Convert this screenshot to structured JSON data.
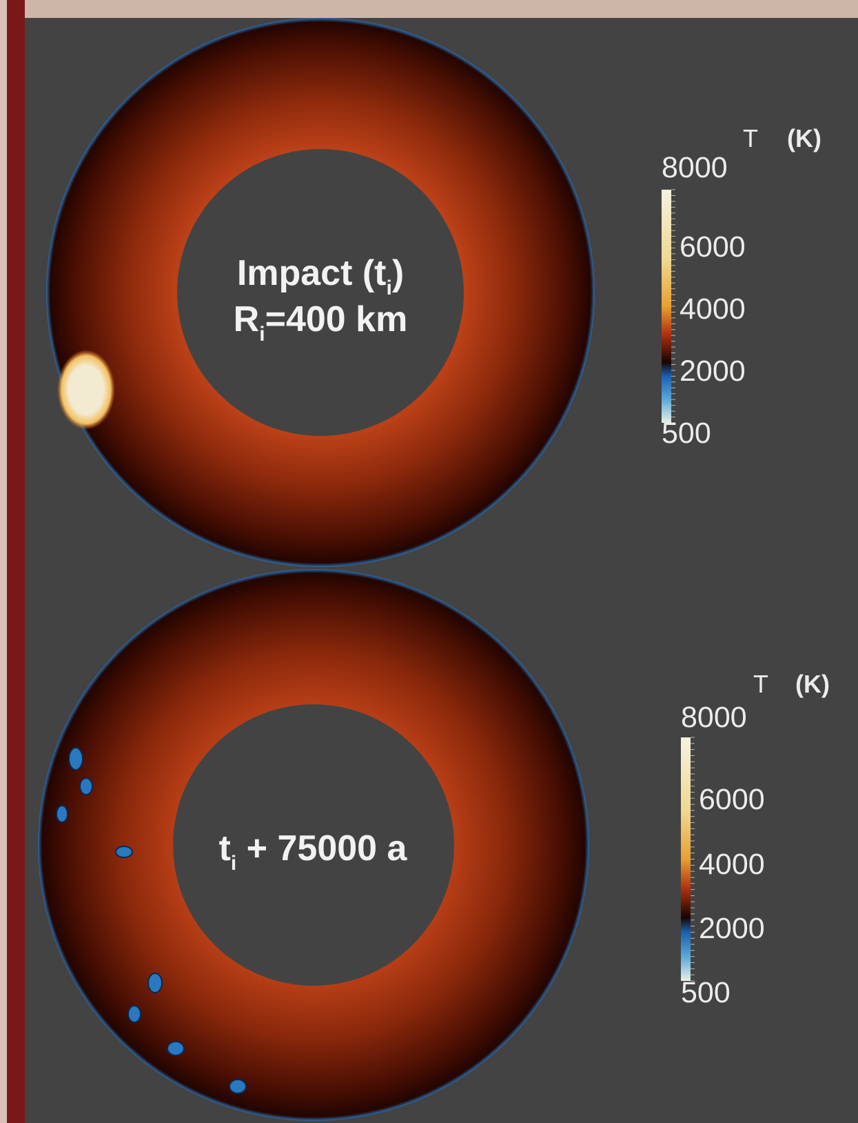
{
  "panels": [
    {
      "label": {
        "line1": "Impact (t",
        "line1_sub": "i",
        "line1_end": ")",
        "line2": "R",
        "line2_sub": "i",
        "line2_end": "=400 km"
      },
      "colorbar": {
        "title_symbol": "T",
        "title_unit": "(K)",
        "ticks": [
          8000,
          6000,
          4000,
          2000,
          500
        ]
      }
    },
    {
      "label": {
        "line1": "t",
        "line1_sub": "i",
        "line1_end": " + 75000 a"
      },
      "colorbar": {
        "title_symbol": "T",
        "title_unit": "(K)",
        "ticks": [
          8000,
          6000,
          4000,
          2000,
          500
        ]
      }
    }
  ]
}
